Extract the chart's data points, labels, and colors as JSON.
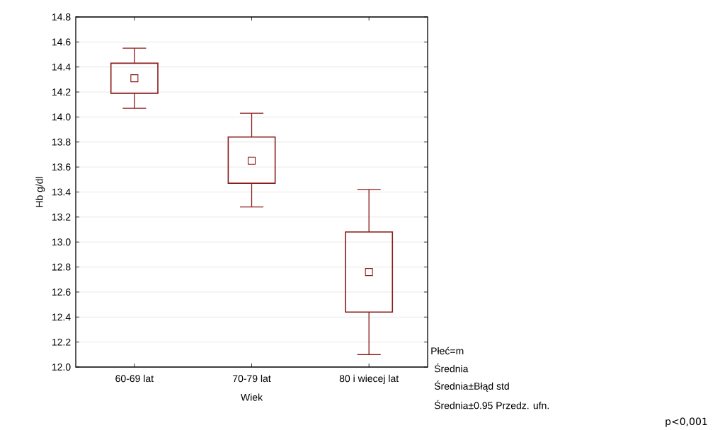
{
  "chart_data": {
    "type": "box",
    "categories": [
      "60-69 lat",
      "70-79 lat",
      "80 i wiecej lat"
    ],
    "series": [
      {
        "color": "#8b1a1a",
        "boxes": [
          {
            "low": 14.07,
            "q1": 14.19,
            "median": 14.31,
            "q3": 14.43,
            "high": 14.55
          },
          {
            "low": 13.28,
            "q1": 13.47,
            "median": 13.65,
            "q3": 13.84,
            "high": 14.03
          },
          {
            "low": 12.1,
            "q1": 12.44,
            "median": 12.76,
            "q3": 13.08,
            "high": 13.42
          }
        ]
      }
    ],
    "xlabel": "Wiek",
    "ylabel": "Hb   g/dl",
    "ylim": [
      12.0,
      14.8
    ],
    "yticks": [
      {
        "value": 12.0,
        "label": "12.0"
      },
      {
        "value": 12.2,
        "label": "12.2"
      },
      {
        "value": 12.4,
        "label": "12.4"
      },
      {
        "value": 12.6,
        "label": "12.6"
      },
      {
        "value": 12.8,
        "label": "12.8"
      },
      {
        "value": 13.0,
        "label": "13.0"
      },
      {
        "value": 13.2,
        "label": "13.2"
      },
      {
        "value": 13.4,
        "label": "13.4"
      },
      {
        "value": 13.6,
        "label": "13.6"
      },
      {
        "value": 13.8,
        "label": "13.8"
      },
      {
        "value": 14.0,
        "label": "14.0"
      },
      {
        "value": 14.2,
        "label": "14.2"
      },
      {
        "value": 14.4,
        "label": "14.4"
      },
      {
        "value": 14.6,
        "label": "14.6"
      },
      {
        "value": 14.8,
        "label": "14.8"
      }
    ],
    "grid": "y",
    "marker": "square",
    "annotations": [
      "Płeć=m",
      "Średnia",
      "Średnia±Błąd std",
      "Średnia±0.95 Przedz. ufn.",
      "p<0,001"
    ]
  }
}
